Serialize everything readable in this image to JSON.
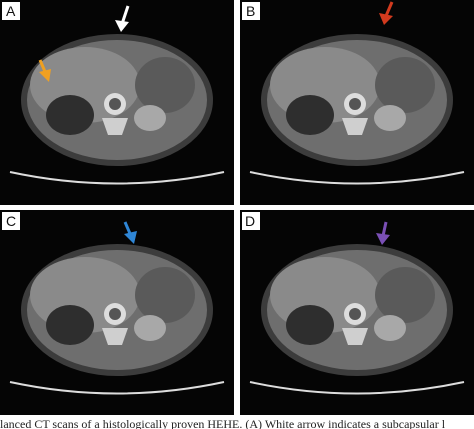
{
  "panels": [
    {
      "label": "A"
    },
    {
      "label": "B"
    },
    {
      "label": "C"
    },
    {
      "label": "D"
    }
  ],
  "caption": "lanced CT scans of a histologically proven HEHE. (A) White arrow indicates a subcapsular l"
}
